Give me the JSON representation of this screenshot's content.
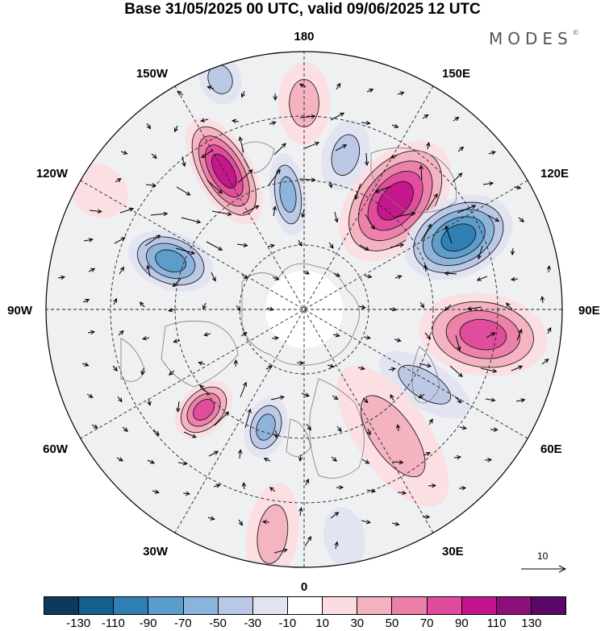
{
  "title": "Base 31/05/2025 00 UTC, valid 09/06/2025 12 UTC",
  "brand": "MODES",
  "brand_mark": "©",
  "longitude_labels": {
    "top": "180",
    "bottom": "0",
    "left": "90W",
    "right": "90E",
    "upper_left_1": "150W",
    "upper_left_2": "120W",
    "upper_right_1": "150E",
    "upper_right_2": "120E",
    "lower_left_1": "60W",
    "lower_left_2": "30W",
    "lower_right_1": "60E",
    "lower_right_2": "30E"
  },
  "vector_scale": {
    "label": "10",
    "icon": "arrow-right-icon"
  },
  "colorbar": {
    "colors": [
      "#0b3a5c",
      "#15608f",
      "#2f7fb3",
      "#5a9ccb",
      "#8bb4dc",
      "#b9c8e6",
      "#e2e3f1",
      "#ffffff",
      "#fbdde1",
      "#f4b1bf",
      "#ec7fa8",
      "#e04b9c",
      "#c3158b",
      "#8d0f7a",
      "#5a0868"
    ],
    "ticks": [
      "-130",
      "-110",
      "-90",
      "-70",
      "-50",
      "-30",
      "-10",
      "10",
      "30",
      "50",
      "70",
      "90",
      "110",
      "130"
    ]
  },
  "anomalies": [
    {
      "lon": 180,
      "colat": 0.8,
      "value": 40,
      "rx": 0.1,
      "ry": 0.16
    },
    {
      "lon": 165,
      "colat": 0.62,
      "value": -45,
      "rx": 0.09,
      "ry": 0.14
    },
    {
      "lon": 140,
      "colat": 0.55,
      "value": 100,
      "rx": 0.17,
      "ry": 0.27
    },
    {
      "lon": 115,
      "colat": 0.66,
      "value": -90,
      "rx": 0.15,
      "ry": 0.22
    },
    {
      "lon": 82,
      "colat": 0.7,
      "value": 75,
      "rx": 0.16,
      "ry": 0.25
    },
    {
      "lon": 58,
      "colat": 0.55,
      "value": -35,
      "rx": 0.09,
      "ry": 0.2
    },
    {
      "lon": 35,
      "colat": 0.6,
      "value": 30,
      "rx": 0.14,
      "ry": 0.32
    },
    {
      "lon": 10,
      "colat": 0.9,
      "value": -25,
      "rx": 0.08,
      "ry": 0.12
    },
    {
      "lon": -8,
      "colat": 0.88,
      "value": 40,
      "rx": 0.1,
      "ry": 0.2
    },
    {
      "lon": -18,
      "colat": 0.48,
      "value": -60,
      "rx": 0.08,
      "ry": 0.12
    },
    {
      "lon": -45,
      "colat": 0.55,
      "value": 70,
      "rx": 0.09,
      "ry": 0.13
    },
    {
      "lon": -110,
      "colat": 0.55,
      "value": -75,
      "rx": 0.11,
      "ry": 0.17
    },
    {
      "lon": -150,
      "colat": 0.62,
      "value": 100,
      "rx": 0.11,
      "ry": 0.23
    },
    {
      "lon": -172,
      "colat": 0.45,
      "value": -60,
      "rx": 0.07,
      "ry": 0.16
    },
    {
      "lon": -120,
      "colat": 0.92,
      "value": 25,
      "rx": 0.1,
      "ry": 0.12
    },
    {
      "lon": -160,
      "colat": 0.95,
      "value": -30,
      "rx": 0.08,
      "ry": 0.1
    }
  ]
}
